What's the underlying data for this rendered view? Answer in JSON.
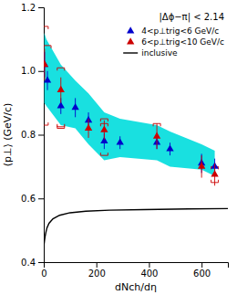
{
  "chart_data": {
    "type": "scatter",
    "x_label": "dNch/dη",
    "y_label": "⟨p⊥⟩ (GeV/c)",
    "annotation": "|Δϕ−π| < 2.14",
    "xlim": [
      0,
      700
    ],
    "ylim": [
      0.4,
      1.2
    ],
    "xticks": [
      0,
      200,
      400,
      600
    ],
    "yticks": [
      0.4,
      0.6,
      0.8,
      {
        "value": 1.0,
        "label": "1.0"
      },
      1.2
    ],
    "grid": false,
    "legend": "upper right",
    "band": {
      "color": "#00dddd",
      "x": [
        2,
        10,
        65,
        120,
        170,
        230,
        290,
        430,
        480,
        600,
        650,
        650,
        600,
        480,
        430,
        290,
        230,
        170,
        120,
        65,
        10,
        2
      ],
      "values": [
        1.12,
        1.1,
        1.02,
        0.97,
        0.93,
        0.87,
        0.85,
        0.83,
        0.81,
        0.77,
        0.75,
        0.67,
        0.69,
        0.7,
        0.72,
        0.73,
        0.72,
        0.77,
        0.82,
        0.83,
        0.89,
        0.9
      ]
    },
    "series": [
      {
        "name": "4<p⊥trig<6 GeV/c",
        "type": "scatter",
        "marker": "triangle",
        "color": "#0000cc",
        "x": [
          3,
          14,
          65,
          120,
          170,
          230,
          290,
          430,
          480,
          600,
          650
        ],
        "values": [
          1.02,
          0.97,
          0.89,
          0.885,
          0.845,
          0.78,
          0.775,
          0.775,
          0.755,
          0.71,
          0.7
        ],
        "error_low": [
          0.04,
          0.03,
          0.025,
          0.03,
          0.025,
          0.025,
          0.02,
          0.02,
          0.02,
          0.03,
          0.025
        ],
        "error_high": [
          0.04,
          0.03,
          0.025,
          0.03,
          0.025,
          0.025,
          0.02,
          0.02,
          0.02,
          0.03,
          0.025
        ]
      },
      {
        "name": "6<p⊥trig<10 GeV/c",
        "type": "scatter",
        "marker": "triangle",
        "color": "#cc0000",
        "x": [
          3,
          65,
          170,
          230,
          430,
          600,
          650
        ],
        "values": [
          1.02,
          0.94,
          0.82,
          0.815,
          0.795,
          0.7,
          0.675
        ],
        "error_low": [
          0.05,
          0.04,
          0.03,
          0.03,
          0.04,
          0.035,
          0.035
        ],
        "error_high": [
          0.05,
          0.04,
          0.03,
          0.03,
          0.04,
          0.035,
          0.035
        ]
      },
      {
        "name": "inclusive",
        "type": "line",
        "color": "#000000",
        "x": [
          1,
          3,
          5,
          8,
          12,
          20,
          35,
          60,
          100,
          160,
          250,
          380,
          550,
          700
        ],
        "values": [
          0.455,
          0.468,
          0.48,
          0.493,
          0.507,
          0.522,
          0.536,
          0.547,
          0.555,
          0.56,
          0.563,
          0.565,
          0.567,
          0.568
        ]
      }
    ],
    "systematic_errors": {
      "color": "#cc0000",
      "points": [
        {
          "x": 3,
          "y": 1.02,
          "low": 0.19,
          "high": 0.12
        },
        {
          "x": 14,
          "y": 0.97,
          "low": 0.0,
          "high": 0.11
        },
        {
          "x": 65,
          "y": 0.89,
          "low": 0.065,
          "high": 0.0
        },
        {
          "x": 65,
          "y": 0.94,
          "low": 0.12,
          "high": 0.07
        },
        {
          "x": 230,
          "y": 0.78,
          "low": 0.0,
          "high": 0.055
        },
        {
          "x": 230,
          "y": 0.815,
          "low": 0.08,
          "high": 0.035
        },
        {
          "x": 430,
          "y": 0.775,
          "low": 0.0,
          "high": 0.06
        },
        {
          "x": 650,
          "y": 0.675,
          "low": 0.025,
          "high": 0.025
        }
      ]
    }
  }
}
